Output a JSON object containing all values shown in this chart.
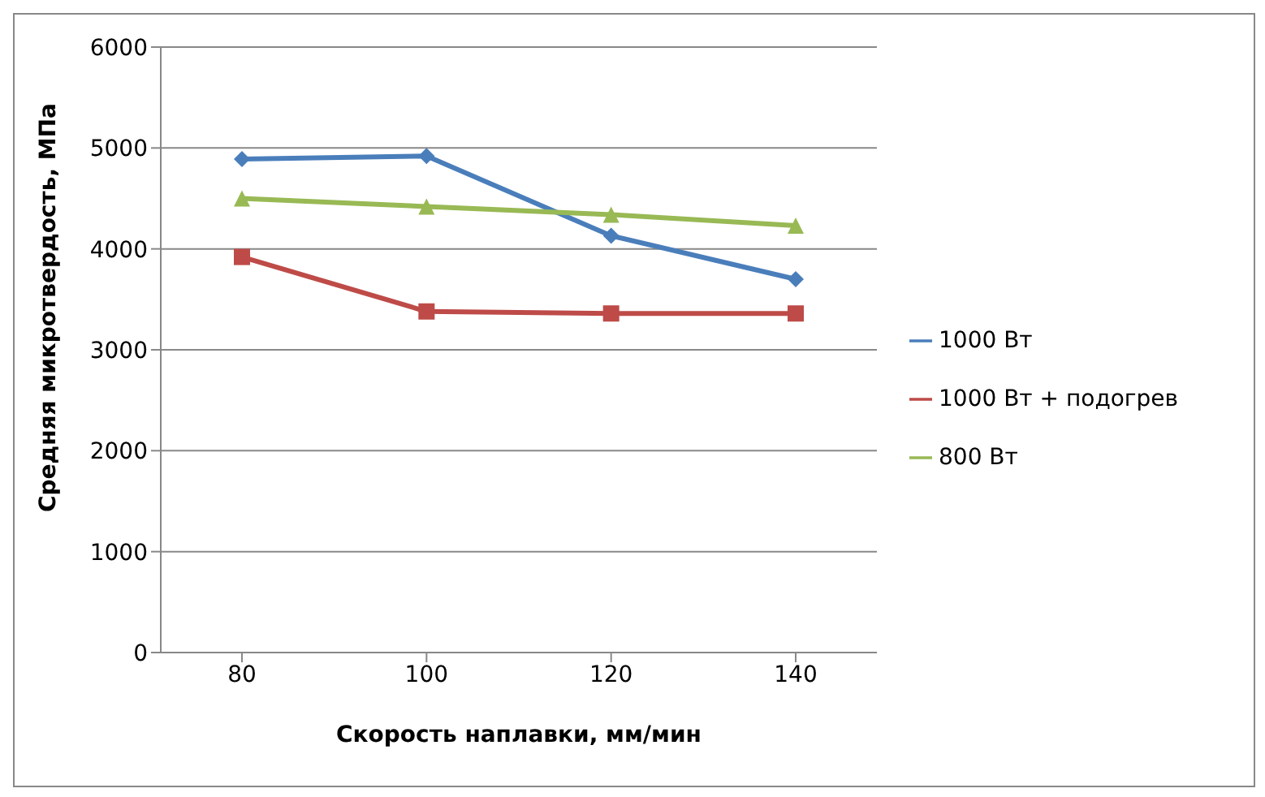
{
  "chart_data": {
    "type": "line",
    "xlabel": "Скорость наплавки, мм/мин",
    "ylabel": "Средняя микротвердость, МПа",
    "categories": [
      "80",
      "100",
      "120",
      "140"
    ],
    "series": [
      {
        "name": "1000 Вт",
        "color": "#4a7ebb",
        "marker": "diamond",
        "values": [
          4890,
          4920,
          4130,
          3700
        ]
      },
      {
        "name": "1000 Вт + подогрев",
        "color": "#be4b48",
        "marker": "square",
        "values": [
          3920,
          3380,
          3360,
          3360
        ]
      },
      {
        "name": "800 Вт",
        "color": "#98b954",
        "marker": "triangle",
        "values": [
          4500,
          4420,
          4340,
          4230
        ]
      }
    ],
    "ylim": [
      0,
      6000
    ],
    "yticks": [
      0,
      1000,
      2000,
      3000,
      4000,
      5000,
      6000
    ],
    "grid": "y",
    "legend": "right"
  }
}
